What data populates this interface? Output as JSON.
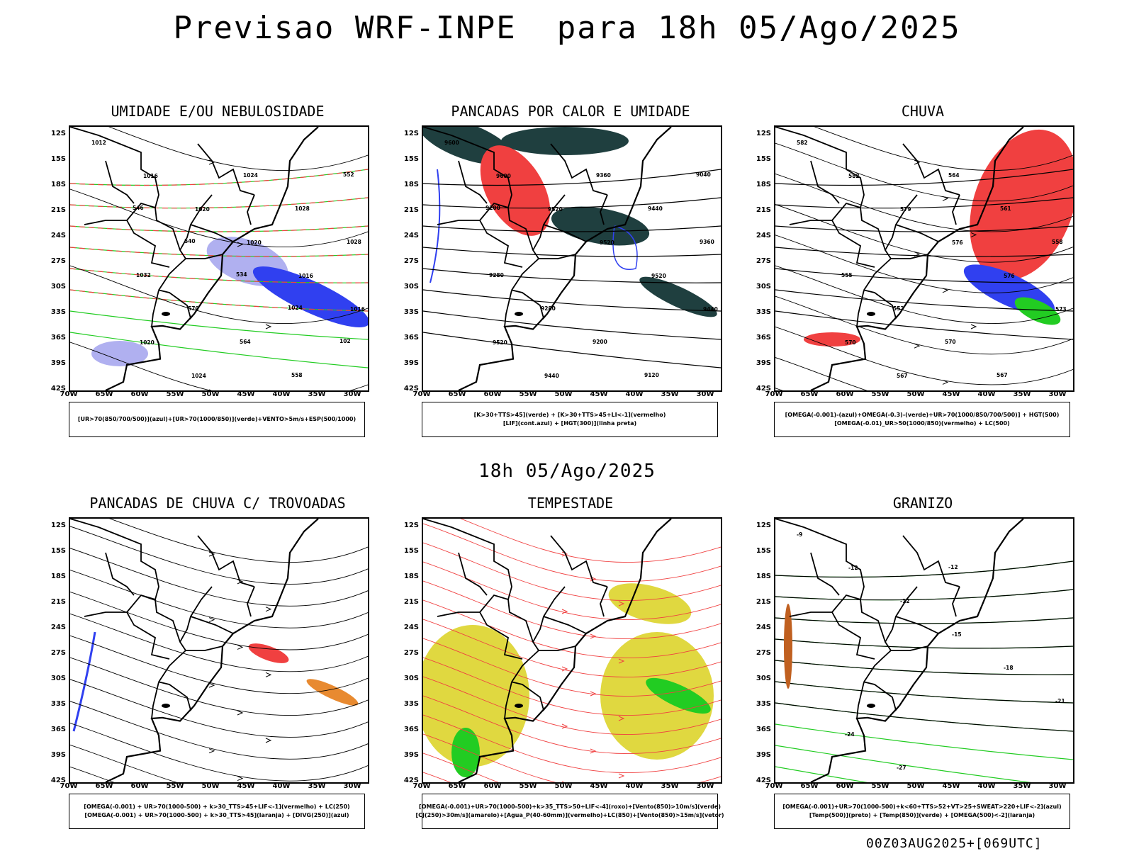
{
  "header": {
    "title": "Previsao WRF-INPE  para 18h 05/Ago/2025"
  },
  "middle": {
    "title": "18h 05/Ago/2025"
  },
  "footer": {
    "stamp": "00Z03AUG2025+[069UTC]"
  },
  "axes": {
    "lat": [
      "12S",
      "15S",
      "18S",
      "21S",
      "24S",
      "27S",
      "30S",
      "33S",
      "36S",
      "39S",
      "42S"
    ],
    "lon": [
      "70W",
      "65W",
      "60W",
      "55W",
      "50W",
      "45W",
      "40W",
      "35W",
      "30W"
    ]
  },
  "colors": {
    "red": "#f04040",
    "green": "#22cc22",
    "blue": "#3040f0",
    "lavender": "#b0b0f0",
    "darkteal": "#1f3f3f",
    "yellow": "#e0d840",
    "orange": "#e88a30"
  },
  "panels": [
    {
      "title": "UMIDADE E/OU NEBULOSIDADE",
      "legend": [
        "[UR>70(850/700/500)](azul)+[UR>70(1000/850)](verde)+VENTO>5m/s+ESP(500/1000)"
      ],
      "labels": [
        "1012",
        "1016",
        "1020",
        "1020",
        "1016",
        "1016",
        "1020",
        "1024",
        "1024",
        "1028",
        "1028",
        "1032",
        "570",
        "564",
        "558",
        "552",
        "546",
        "540",
        "534",
        "1024",
        "102"
      ]
    },
    {
      "title": "PANCADAS POR CALOR E UMIDADE",
      "legend": [
        "[K>30+TTS>45](verde) + [K>30+TTS>45+LI<-1](vermelho)",
        "[LIF](cont.azul) + [HGT(300)](linha preta)"
      ],
      "labels": [
        "9600",
        "9600",
        "9520",
        "9520",
        "9520",
        "9440",
        "9520",
        "9440",
        "9360",
        "9440",
        "9360",
        "9280",
        "9280",
        "9200",
        "9120",
        "9040",
        "9200"
      ]
    },
    {
      "title": "CHUVA",
      "legend": [
        "[OMEGA(-0.001)-(azul)+OMEGA(-0.3)-(verde)+UR>70(1000/850/700/500)] + HGT(500)",
        "[OMEGA(-0.01)_UR>50(1000/850)(vermelho) + LC(500)"
      ],
      "labels": [
        "582",
        "582",
        "579",
        "576",
        "576",
        "573",
        "570",
        "567",
        "564",
        "561",
        "558",
        "555",
        "552",
        "570",
        "567"
      ]
    },
    {
      "title": "PANCADAS DE CHUVA C/ TROVOADAS",
      "legend": [
        "[OMEGA(-0.001) + UR>70(1000-500) + k>30_TTS>45+LIF<-1](vermelho) + LC(250)",
        "[OMEGA(-0.001) + UR>70(1000-500) + k>30_TTS>45](laranja) + [DIVG(250)](azul)"
      ],
      "labels": []
    },
    {
      "title": "TEMPESTADE",
      "legend": [
        "[OMEGA(-0.001)+UR>70(1000-500)+k>35_TTS>50+LIF<-4](roxo)+[Vento(850)>10m/s](verde)",
        "[CJ(250)>30m/s](amarelo)+[Agua_P(40-60mm)](vermelho)+LC(850)+[Vento(850)>15m/s](vetor)"
      ],
      "labels": []
    },
    {
      "title": "GRANIZO",
      "legend": [
        "[OMEGA(-0.001)+UR>70(1000-500)+k<60+TTS>52+VT>25+SWEAT>220+LIF<-2](azul)",
        "[Temp(500)](preto) + [Temp(850)](verde) + [OMEGA(500)<-2](laranja)"
      ],
      "labels": [
        "-9",
        "-12",
        "-12",
        "-15",
        "-18",
        "-21",
        "-24",
        "-27",
        "-12"
      ]
    }
  ]
}
